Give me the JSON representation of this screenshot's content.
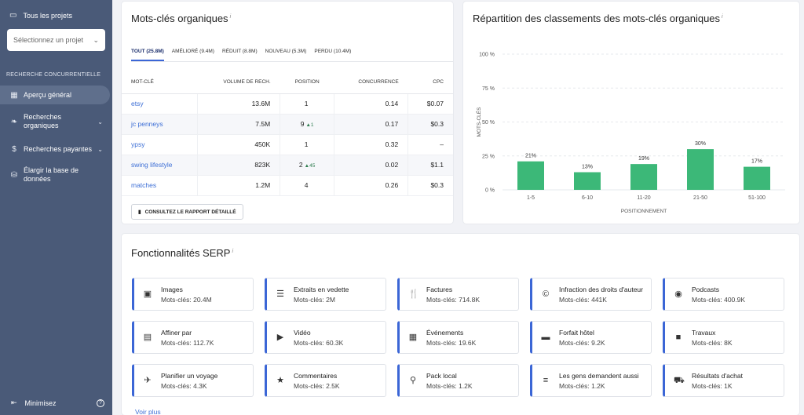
{
  "sidebar": {
    "all_projects": "Tous les projets",
    "select_placeholder": "Sélectionnez un projet",
    "section": "RECHERCHE CONCURRENTIELLE",
    "items": [
      {
        "label": "Aperçu général",
        "icon": "grid-icon"
      },
      {
        "label": "Recherches organiques",
        "icon": "leaf-icon"
      },
      {
        "label": "Recherches payantes",
        "icon": "dollar-icon"
      },
      {
        "label": "Élargir la base de données",
        "icon": "database-icon"
      }
    ],
    "minimize": "Minimisez"
  },
  "keywords": {
    "title": "Mots-clés organiques",
    "info": "i",
    "tabs": [
      "TOUT (25.8M)",
      "AMÉLIORÉ (9.4M)",
      "RÉDUIT (8.8M)",
      "NOUVEAU (5.3M)",
      "PERDU (10.4M)"
    ],
    "columns": [
      "MOT-CLÉ",
      "VOLUME DE RECH.",
      "POSITION",
      "CONCURRENCE",
      "CPC"
    ],
    "rows": [
      {
        "keyword": "etsy",
        "volume": "13.6M",
        "position": "1",
        "delta": "",
        "competition": "0.14",
        "cpc": "$0.07"
      },
      {
        "keyword": "jc penneys",
        "volume": "7.5M",
        "position": "9",
        "delta": "▲1",
        "competition": "0.17",
        "cpc": "$0.3"
      },
      {
        "keyword": "ypsy",
        "volume": "450K",
        "position": "1",
        "delta": "",
        "competition": "0.32",
        "cpc": "–"
      },
      {
        "keyword": "swing lifestyle",
        "volume": "823K",
        "position": "2",
        "delta": "▲45",
        "competition": "0.02",
        "cpc": "$1.1"
      },
      {
        "keyword": "matches",
        "volume": "1.2M",
        "position": "4",
        "delta": "",
        "competition": "0.26",
        "cpc": "$0.3"
      }
    ],
    "report_button": "CONSULTEZ LE RAPPORT DÉTAILLÉ"
  },
  "chart": {
    "title": "Répartition des classements des mots-clés organiques",
    "info": "i"
  },
  "chart_data": {
    "type": "bar",
    "categories": [
      "1-5",
      "6-10",
      "11-20",
      "21-50",
      "51-100"
    ],
    "values": [
      21,
      13,
      19,
      30,
      17
    ],
    "data_labels": [
      "21%",
      "13%",
      "19%",
      "30%",
      "17%"
    ],
    "yticks": [
      "0 %",
      "25 %",
      "50 %",
      "75 %",
      "100 %"
    ],
    "ylim": [
      0,
      100
    ],
    "ylabel": "MOTS-CLÉS",
    "xlabel": "POSITIONNEMENT",
    "bar_color": "#3cb878",
    "grid": true
  },
  "serp": {
    "title": "Fonctionnalités SERP",
    "info": "i",
    "features": [
      {
        "name": "Images",
        "count": "Mots-clés: 20.4M",
        "icon": "image-icon",
        "glyph": "▣"
      },
      {
        "name": "Extraits en vedette",
        "count": "Mots-clés: 2M",
        "icon": "list-icon",
        "glyph": "☰"
      },
      {
        "name": "Factures",
        "count": "Mots-clés: 714.8K",
        "icon": "cutlery-icon",
        "glyph": "🍴"
      },
      {
        "name": "Infraction des droits d'auteur",
        "count": "Mots-clés: 441K",
        "icon": "copyright-icon",
        "glyph": "©"
      },
      {
        "name": "Podcasts",
        "count": "Mots-clés: 400.9K",
        "icon": "podcast-icon",
        "glyph": "◉"
      },
      {
        "name": "Affiner par",
        "count": "Mots-clés: 112.7K",
        "icon": "window-icon",
        "glyph": "▤"
      },
      {
        "name": "Vidéo",
        "count": "Mots-clés: 60.3K",
        "icon": "video-icon",
        "glyph": "▶"
      },
      {
        "name": "Événements",
        "count": "Mots-clés: 19.6K",
        "icon": "calendar-icon",
        "glyph": "▦"
      },
      {
        "name": "Forfait hôtel",
        "count": "Mots-clés: 9.2K",
        "icon": "bed-icon",
        "glyph": "▬"
      },
      {
        "name": "Travaux",
        "count": "Mots-clés: 8K",
        "icon": "briefcase-icon",
        "glyph": "■"
      },
      {
        "name": "Planifier un voyage",
        "count": "Mots-clés: 4.3K",
        "icon": "plane-icon",
        "glyph": "✈"
      },
      {
        "name": "Commentaires",
        "count": "Mots-clés: 2.5K",
        "icon": "star-icon",
        "glyph": "★"
      },
      {
        "name": "Pack local",
        "count": "Mots-clés: 1.2K",
        "icon": "pin-icon",
        "glyph": "⚲"
      },
      {
        "name": "Les gens demandent aussi",
        "count": "Mots-clés: 1.2K",
        "icon": "lines-icon",
        "glyph": "≡"
      },
      {
        "name": "Résultats d'achat",
        "count": "Mots-clés: 1K",
        "icon": "basket-icon",
        "glyph": "⛟"
      }
    ],
    "see_more": "Voir plus"
  },
  "colors": {
    "sidebar": "#4a5a78",
    "accent": "#3b66d6",
    "bar": "#3cb878"
  }
}
